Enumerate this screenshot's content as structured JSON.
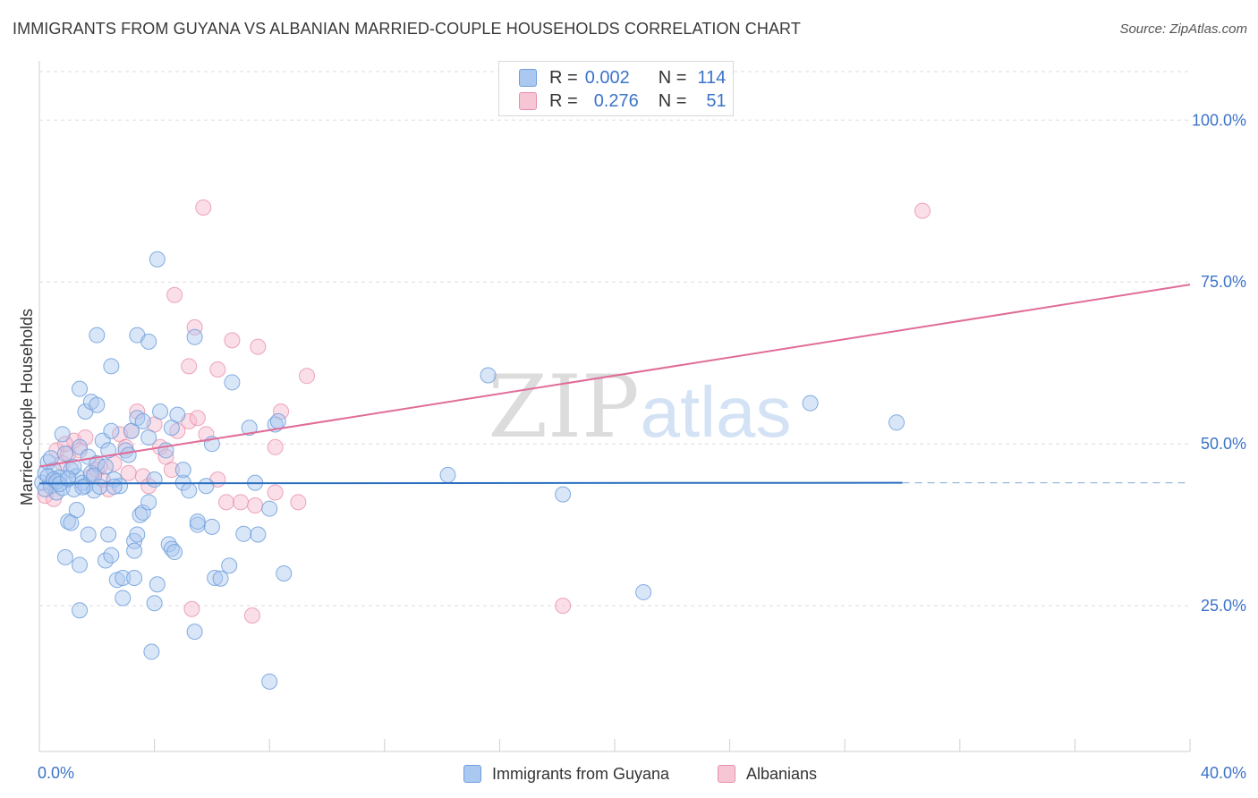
{
  "title": "IMMIGRANTS FROM GUYANA VS ALBANIAN MARRIED-COUPLE HOUSEHOLDS CORRELATION CHART",
  "source": "Source: ZipAtlas.com",
  "watermark": {
    "zip": "ZIP",
    "atlas": "atlas"
  },
  "legend_top": {
    "rows": [
      {
        "r_label": "R =",
        "r_value": "0.002",
        "n_label": "N =",
        "n_value": "114"
      },
      {
        "r_label": "R =",
        "r_value": "0.276",
        "n_label": "N =",
        "n_value": "51"
      }
    ]
  },
  "colors": {
    "blue_fill": "#aac8f0",
    "blue_stroke": "#6f9fdc",
    "blue_line": "#2a6fc0",
    "pink_fill": "#f6b8cb",
    "pink_stroke": "#e890ab",
    "pink_line": "#e06c98",
    "axis_label": "#3b73c9",
    "grid": "#dddddd"
  },
  "chart_data": {
    "type": "scatter",
    "title": "IMMIGRANTS FROM GUYANA VS ALBANIAN MARRIED-COUPLE HOUSEHOLDS CORRELATION CHART",
    "xlabel": "",
    "ylabel": "Married-couple Households",
    "xlim": [
      0,
      40
    ],
    "ylim": [
      2.5,
      107.5
    ],
    "x_tick_labels": [
      {
        "value": 0,
        "label": "0.0%"
      },
      {
        "value": 40,
        "label": "40.0%"
      }
    ],
    "y_tick_labels": [
      {
        "value": 100,
        "label": "100.0%"
      },
      {
        "value": 75,
        "label": "75.0%"
      },
      {
        "value": 50,
        "label": "50.0%"
      },
      {
        "value": 25,
        "label": "25.0%"
      }
    ],
    "grid": true,
    "legend_position": "bottom",
    "series": [
      {
        "name": "Immigrants from Guyana",
        "color": "#aac8f0",
        "trend": {
          "x": [
            0,
            30
          ],
          "y": [
            43.9,
            44.0
          ],
          "dashed_to_x": 40
        },
        "points": [
          [
            0.1,
            44.0
          ],
          [
            0.2,
            45.5
          ],
          [
            0.3,
            47.2
          ],
          [
            0.4,
            43.5
          ],
          [
            0.5,
            46.0
          ],
          [
            0.6,
            42.5
          ],
          [
            0.7,
            44.8
          ],
          [
            0.8,
            43.2
          ],
          [
            0.9,
            48.5
          ],
          [
            1.0,
            44.5
          ],
          [
            1.1,
            46.0
          ],
          [
            1.2,
            43.0
          ],
          [
            1.3,
            45.0
          ],
          [
            1.4,
            49.5
          ],
          [
            1.5,
            44.0
          ],
          [
            1.6,
            43.5
          ],
          [
            1.7,
            48.0
          ],
          [
            1.8,
            45.5
          ],
          [
            1.9,
            42.8
          ],
          [
            2.0,
            47.0
          ],
          [
            0.3,
            45.0
          ],
          [
            0.5,
            44.5
          ],
          [
            0.8,
            51.5
          ],
          [
            1.2,
            46.5
          ],
          [
            1.6,
            55.0
          ],
          [
            2.2,
            50.5
          ],
          [
            2.4,
            49.0
          ],
          [
            2.6,
            44.5
          ],
          [
            2.8,
            43.5
          ],
          [
            3.0,
            49.0
          ],
          [
            3.2,
            52.0
          ],
          [
            3.4,
            54.0
          ],
          [
            3.6,
            53.5
          ],
          [
            3.8,
            51.0
          ],
          [
            4.0,
            44.5
          ],
          [
            4.2,
            55.0
          ],
          [
            4.4,
            49.0
          ],
          [
            4.6,
            52.5
          ],
          [
            4.8,
            54.5
          ],
          [
            5.0,
            44.0
          ],
          [
            1.4,
            58.5
          ],
          [
            1.8,
            56.5
          ],
          [
            2.0,
            56.0
          ],
          [
            2.5,
            52.0
          ],
          [
            2.0,
            66.8
          ],
          [
            3.4,
            66.8
          ],
          [
            3.8,
            65.8
          ],
          [
            2.5,
            62.0
          ],
          [
            4.1,
            78.5
          ],
          [
            5.4,
            66.5
          ],
          [
            6.7,
            59.5
          ],
          [
            5.0,
            46.0
          ],
          [
            5.2,
            42.8
          ],
          [
            5.8,
            43.5
          ],
          [
            6.0,
            50.0
          ],
          [
            7.3,
            52.5
          ],
          [
            7.5,
            44.0
          ],
          [
            8.2,
            53.0
          ],
          [
            8.3,
            53.5
          ],
          [
            5.5,
            37.5
          ],
          [
            5.5,
            38.0
          ],
          [
            1.0,
            38.0
          ],
          [
            1.1,
            37.8
          ],
          [
            1.3,
            39.8
          ],
          [
            1.7,
            36.0
          ],
          [
            2.4,
            36.0
          ],
          [
            3.3,
            35.0
          ],
          [
            3.4,
            36.0
          ],
          [
            3.5,
            39.0
          ],
          [
            3.6,
            39.4
          ],
          [
            3.8,
            41.0
          ],
          [
            4.5,
            34.5
          ],
          [
            4.6,
            33.8
          ],
          [
            4.7,
            33.3
          ],
          [
            6.0,
            37.2
          ],
          [
            7.1,
            36.1
          ],
          [
            7.6,
            36.0
          ],
          [
            8.0,
            40.0
          ],
          [
            0.9,
            32.5
          ],
          [
            1.4,
            31.3
          ],
          [
            2.3,
            32.0
          ],
          [
            2.5,
            32.8
          ],
          [
            3.3,
            33.5
          ],
          [
            2.7,
            29.0
          ],
          [
            2.9,
            29.3
          ],
          [
            3.3,
            29.3
          ],
          [
            4.1,
            28.3
          ],
          [
            6.1,
            29.3
          ],
          [
            6.3,
            29.2
          ],
          [
            6.6,
            31.2
          ],
          [
            8.5,
            30.0
          ],
          [
            2.9,
            26.2
          ],
          [
            4.0,
            25.4
          ],
          [
            1.4,
            24.3
          ],
          [
            5.4,
            21.0
          ],
          [
            3.9,
            17.9
          ],
          [
            8.0,
            13.3
          ],
          [
            15.6,
            60.6
          ],
          [
            14.2,
            45.2
          ],
          [
            18.2,
            42.2
          ],
          [
            21.0,
            27.1
          ],
          [
            26.8,
            56.3
          ],
          [
            29.8,
            53.3
          ],
          [
            0.2,
            43.0
          ],
          [
            0.4,
            47.8
          ],
          [
            0.6,
            44.2
          ],
          [
            0.7,
            43.8
          ],
          [
            1.0,
            44.7
          ],
          [
            1.5,
            43.3
          ],
          [
            1.9,
            45.1
          ],
          [
            2.1,
            43.4
          ],
          [
            2.3,
            46.5
          ],
          [
            2.6,
            43.4
          ],
          [
            3.1,
            48.3
          ]
        ]
      },
      {
        "name": "Albanians",
        "color": "#f6b8cb",
        "trend": {
          "x": [
            0,
            40
          ],
          "y": [
            46.5,
            74.6
          ]
        },
        "points": [
          [
            0.2,
            42.0
          ],
          [
            0.4,
            44.0
          ],
          [
            0.5,
            41.5
          ],
          [
            0.6,
            49.0
          ],
          [
            0.8,
            47.0
          ],
          [
            1.0,
            48.5
          ],
          [
            1.2,
            50.5
          ],
          [
            1.4,
            49.0
          ],
          [
            1.6,
            51.0
          ],
          [
            1.8,
            45.0
          ],
          [
            2.0,
            46.0
          ],
          [
            2.2,
            44.5
          ],
          [
            2.4,
            43.0
          ],
          [
            2.6,
            47.0
          ],
          [
            2.8,
            51.5
          ],
          [
            3.0,
            49.5
          ],
          [
            3.2,
            52.0
          ],
          [
            3.4,
            55.0
          ],
          [
            3.6,
            45.0
          ],
          [
            3.8,
            43.5
          ],
          [
            4.0,
            53.0
          ],
          [
            4.2,
            49.5
          ],
          [
            4.4,
            48.0
          ],
          [
            4.6,
            46.0
          ],
          [
            4.8,
            52.0
          ],
          [
            5.2,
            53.5
          ],
          [
            5.5,
            54.0
          ],
          [
            5.8,
            51.5
          ],
          [
            6.2,
            44.5
          ],
          [
            6.5,
            41.0
          ],
          [
            7.0,
            41.0
          ],
          [
            7.5,
            40.5
          ],
          [
            8.2,
            42.5
          ],
          [
            8.4,
            55.0
          ],
          [
            9.0,
            41.0
          ],
          [
            4.7,
            73.0
          ],
          [
            5.2,
            62.0
          ],
          [
            5.4,
            68.0
          ],
          [
            6.2,
            61.5
          ],
          [
            6.7,
            66.0
          ],
          [
            7.6,
            65.0
          ],
          [
            9.3,
            60.5
          ],
          [
            5.7,
            86.5
          ],
          [
            30.7,
            86.0
          ],
          [
            5.3,
            24.5
          ],
          [
            7.4,
            23.5
          ],
          [
            18.2,
            25.0
          ],
          [
            8.2,
            49.5
          ],
          [
            2.1,
            46.5
          ],
          [
            3.1,
            45.5
          ],
          [
            0.9,
            50.0
          ]
        ]
      }
    ]
  },
  "bottom_legend": [
    {
      "label": "Immigrants from Guyana"
    },
    {
      "label": "Albanians"
    }
  ]
}
